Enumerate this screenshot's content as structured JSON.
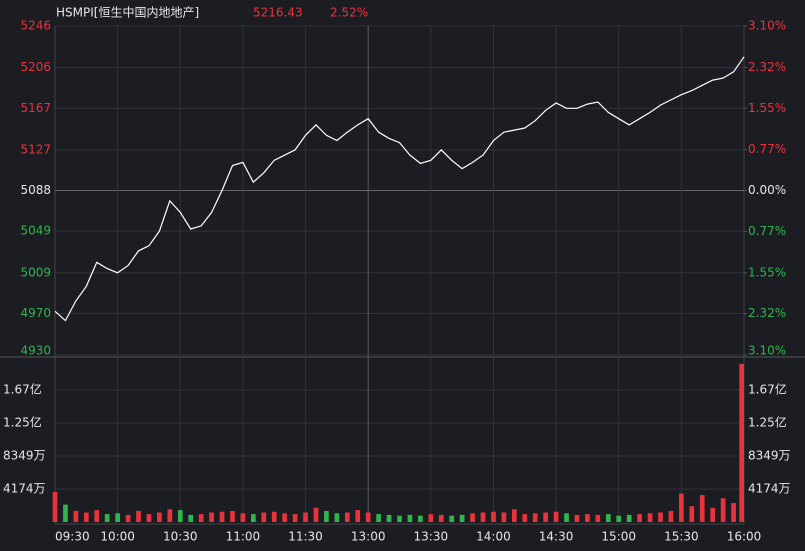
{
  "chart_data": [
    {
      "type": "line",
      "title": "HSMPI[恒生中国内地地产]",
      "last_price": "5216.43",
      "change_percent": "2.52%",
      "x": [
        "09:30",
        "09:35",
        "09:40",
        "09:45",
        "09:50",
        "09:55",
        "10:00",
        "10:05",
        "10:10",
        "10:15",
        "10:20",
        "10:25",
        "10:30",
        "10:35",
        "10:40",
        "10:45",
        "10:50",
        "10:55",
        "11:00",
        "11:05",
        "11:10",
        "11:15",
        "11:20",
        "11:25",
        "11:30",
        "11:35",
        "11:40",
        "11:45",
        "11:50",
        "11:55",
        "13:00",
        "13:05",
        "13:10",
        "13:15",
        "13:20",
        "13:25",
        "13:30",
        "13:35",
        "13:40",
        "13:45",
        "13:50",
        "13:55",
        "14:00",
        "14:05",
        "14:10",
        "14:15",
        "14:20",
        "14:25",
        "14:30",
        "14:35",
        "14:40",
        "14:45",
        "14:50",
        "14:55",
        "15:00",
        "15:05",
        "15:10",
        "15:15",
        "15:20",
        "15:25",
        "15:30",
        "15:35",
        "15:40",
        "15:45",
        "15:50",
        "15:55",
        "16:00"
      ],
      "series": [
        {
          "name": "HSMPI",
          "color": "#ffffff",
          "values": [
            4972,
            4963,
            4982,
            4996,
            5019,
            5013,
            5009,
            5016,
            5030,
            5035,
            5049,
            5078,
            5067,
            5051,
            5054,
            5067,
            5088,
            5112,
            5115,
            5096,
            5105,
            5117,
            5122,
            5127,
            5141,
            5151,
            5141,
            5136,
            5144,
            5151,
            5157,
            5144,
            5138,
            5134,
            5122,
            5114,
            5117,
            5127,
            5117,
            5109,
            5115,
            5122,
            5136,
            5144,
            5146,
            5148,
            5155,
            5165,
            5172,
            5167,
            5167,
            5171,
            5173,
            5163,
            5157,
            5151,
            5157,
            5163,
            5170,
            5175,
            5180,
            5184,
            5189,
            5194,
            5196,
            5202,
            5216.43
          ]
        }
      ],
      "xticks": [
        "09:30",
        "10:00",
        "10:30",
        "11:00",
        "11:30",
        "13:00",
        "13:30",
        "14:00",
        "14:30",
        "15:00",
        "15:30",
        "16:00"
      ],
      "ylim": [
        4930,
        5246
      ],
      "yticks": [
        5246,
        5206,
        5167,
        5127,
        5088,
        5049,
        5009,
        4970,
        4930
      ],
      "y2lim": [
        -3.1,
        3.1
      ],
      "y2ticks": [
        {
          "value": 3.1,
          "label": "3.10%"
        },
        {
          "value": 2.32,
          "label": "2.32%"
        },
        {
          "value": 1.55,
          "label": "1.55%"
        },
        {
          "value": 0.77,
          "label": "0.77%"
        },
        {
          "value": 0,
          "label": "0.00%"
        },
        {
          "value": -0.77,
          "label": "0.77%"
        },
        {
          "value": -1.55,
          "label": "1.55%"
        },
        {
          "value": -2.32,
          "label": "2.32%"
        },
        {
          "value": -3.1,
          "label": "3.10%"
        }
      ],
      "up_color": "#e8333a",
      "down_color": "#2fb54a",
      "grid": true
    },
    {
      "type": "bar",
      "ylim": [
        0,
        208700000
      ],
      "yticks": [
        {
          "value": 167000000,
          "label": "1.67亿"
        },
        {
          "value": 125000000,
          "label": "1.25亿"
        },
        {
          "value": 83490000,
          "label": "8349万"
        },
        {
          "value": 41740000,
          "label": "4174万"
        }
      ],
      "values": [
        38000000,
        22000000,
        14000000,
        12000000,
        15000000,
        10000000,
        11000000,
        9000000,
        14000000,
        10000000,
        12000000,
        16000000,
        15000000,
        9000000,
        10000000,
        12000000,
        13000000,
        14000000,
        11000000,
        10000000,
        12000000,
        13000000,
        11000000,
        10000000,
        12000000,
        18000000,
        14000000,
        11000000,
        12000000,
        15000000,
        12000000,
        10000000,
        9000000,
        8000000,
        9000000,
        8000000,
        10000000,
        9000000,
        8000000,
        9000000,
        11000000,
        12000000,
        13000000,
        12000000,
        16000000,
        10000000,
        11000000,
        12000000,
        13000000,
        11000000,
        9000000,
        10000000,
        9000000,
        10000000,
        8000000,
        9000000,
        10000000,
        11000000,
        12000000,
        14000000,
        36000000,
        20000000,
        34000000,
        18000000,
        30000000,
        24000000,
        200000000
      ]
    }
  ]
}
